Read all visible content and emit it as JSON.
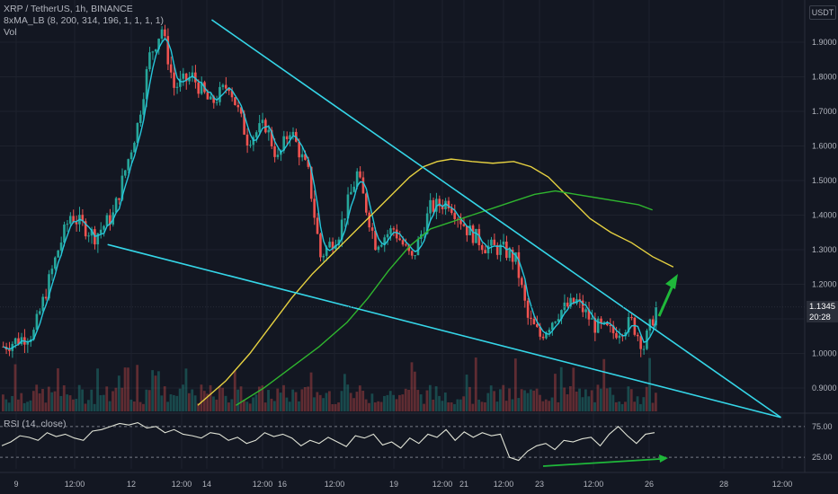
{
  "legend": {
    "symbol": "XRP / TetherUS, 1h, BINANCE",
    "indicator": "8xMA_LB (8, 200, 314, 196, 1, 1, 1, 1)",
    "volume": "Vol"
  },
  "rsi_legend": "RSI (14, close)",
  "currency": "USDT",
  "last_price": "1.1345",
  "countdown": "20:28",
  "colors": {
    "background": "#131722",
    "grid": "#1e222d",
    "up": "#26a69a",
    "down": "#ef5350",
    "ma_fast": "#26c6da",
    "ma_yellow": "#e6d141",
    "ma_green": "#2fb52f",
    "trendline": "#35d6e8",
    "arrow": "#1fb83a",
    "rsi_line": "#e0e3d6"
  },
  "chart_data": [
    {
      "type": "candlestick",
      "title": "XRP / TetherUS, 1h, BINANCE",
      "y_axis_labels": [
        "1.9000",
        "1.8000",
        "1.7000",
        "1.6000",
        "1.5000",
        "1.4000",
        "1.3000",
        "1.2000",
        "1.1000",
        "1.0000",
        "0.9000"
      ],
      "x_axis_labels": [
        "9",
        "12:00",
        "12",
        "12:00",
        "14",
        "12:00",
        "16",
        "12:00",
        "19",
        "12:00",
        "21",
        "12:00",
        "23",
        "12:00",
        "26",
        "28",
        "12:00"
      ],
      "ylim": [
        0.85,
        1.97
      ],
      "trend": [
        {
          "x": 0,
          "y": 1.02
        },
        {
          "x": 10,
          "y": 1.06
        },
        {
          "x": 18,
          "y": 1.3
        },
        {
          "x": 22,
          "y": 1.4
        },
        {
          "x": 30,
          "y": 1.34
        },
        {
          "x": 36,
          "y": 1.4
        },
        {
          "x": 44,
          "y": 1.66
        },
        {
          "x": 48,
          "y": 1.86
        },
        {
          "x": 52,
          "y": 1.94
        },
        {
          "x": 56,
          "y": 1.77
        },
        {
          "x": 62,
          "y": 1.8
        },
        {
          "x": 68,
          "y": 1.72
        },
        {
          "x": 74,
          "y": 1.78
        },
        {
          "x": 80,
          "y": 1.62
        },
        {
          "x": 86,
          "y": 1.66
        },
        {
          "x": 90,
          "y": 1.56
        },
        {
          "x": 94,
          "y": 1.65
        },
        {
          "x": 100,
          "y": 1.52
        },
        {
          "x": 104,
          "y": 1.28
        },
        {
          "x": 110,
          "y": 1.35
        },
        {
          "x": 116,
          "y": 1.52
        },
        {
          "x": 122,
          "y": 1.32
        },
        {
          "x": 128,
          "y": 1.36
        },
        {
          "x": 134,
          "y": 1.27
        },
        {
          "x": 140,
          "y": 1.42
        },
        {
          "x": 146,
          "y": 1.44
        },
        {
          "x": 152,
          "y": 1.36
        },
        {
          "x": 158,
          "y": 1.31
        },
        {
          "x": 164,
          "y": 1.3
        },
        {
          "x": 168,
          "y": 1.27
        },
        {
          "x": 172,
          "y": 1.1
        },
        {
          "x": 176,
          "y": 1.05
        },
        {
          "x": 182,
          "y": 1.12
        },
        {
          "x": 188,
          "y": 1.15
        },
        {
          "x": 194,
          "y": 1.08
        },
        {
          "x": 200,
          "y": 1.06
        },
        {
          "x": 206,
          "y": 1.09
        },
        {
          "x": 210,
          "y": 1.02
        },
        {
          "x": 214,
          "y": 1.13
        }
      ],
      "ma_yellow": [
        {
          "x": 0.57,
          "y": 0.85
        },
        {
          "x": 0.65,
          "y": 0.92
        },
        {
          "x": 0.72,
          "y": 1.0
        },
        {
          "x": 0.78,
          "y": 1.08
        },
        {
          "x": 0.84,
          "y": 1.16
        },
        {
          "x": 0.9,
          "y": 1.23
        },
        {
          "x": 0.96,
          "y": 1.29
        },
        {
          "x": 1.02,
          "y": 1.35
        },
        {
          "x": 1.08,
          "y": 1.41
        },
        {
          "x": 1.14,
          "y": 1.47
        },
        {
          "x": 1.18,
          "y": 1.51
        },
        {
          "x": 1.22,
          "y": 1.54
        },
        {
          "x": 1.26,
          "y": 1.555
        },
        {
          "x": 1.3,
          "y": 1.562
        },
        {
          "x": 1.36,
          "y": 1.555
        },
        {
          "x": 1.42,
          "y": 1.55
        },
        {
          "x": 1.48,
          "y": 1.555
        },
        {
          "x": 1.53,
          "y": 1.54
        },
        {
          "x": 1.58,
          "y": 1.51
        },
        {
          "x": 1.64,
          "y": 1.45
        },
        {
          "x": 1.7,
          "y": 1.39
        },
        {
          "x": 1.76,
          "y": 1.35
        },
        {
          "x": 1.82,
          "y": 1.32
        },
        {
          "x": 1.88,
          "y": 1.28
        },
        {
          "x": 1.94,
          "y": 1.25
        }
      ],
      "ma_green": [
        {
          "x": 0.68,
          "y": 0.85
        },
        {
          "x": 0.76,
          "y": 0.9
        },
        {
          "x": 0.84,
          "y": 0.96
        },
        {
          "x": 0.92,
          "y": 1.02
        },
        {
          "x": 1.0,
          "y": 1.09
        },
        {
          "x": 1.06,
          "y": 1.16
        },
        {
          "x": 1.12,
          "y": 1.24
        },
        {
          "x": 1.18,
          "y": 1.31
        },
        {
          "x": 1.24,
          "y": 1.36
        },
        {
          "x": 1.3,
          "y": 1.38
        },
        {
          "x": 1.36,
          "y": 1.4
        },
        {
          "x": 1.42,
          "y": 1.42
        },
        {
          "x": 1.48,
          "y": 1.44
        },
        {
          "x": 1.54,
          "y": 1.46
        },
        {
          "x": 1.6,
          "y": 1.47
        },
        {
          "x": 1.66,
          "y": 1.46
        },
        {
          "x": 1.72,
          "y": 1.45
        },
        {
          "x": 1.78,
          "y": 1.44
        },
        {
          "x": 1.84,
          "y": 1.43
        },
        {
          "x": 1.88,
          "y": 1.415
        }
      ],
      "trendlines": [
        {
          "from": {
            "x": 0.61,
            "y": 1.965
          },
          "to": {
            "x": 2.25,
            "y": 0.815
          }
        },
        {
          "from": {
            "x": 0.31,
            "y": 1.315
          },
          "to": {
            "x": 2.25,
            "y": 0.815
          }
        }
      ],
      "last_price": 1.1345
    },
    {
      "type": "line",
      "title": "RSI (14, close)",
      "y_axis_labels": [
        "75.00",
        "25.00"
      ],
      "ylim": [
        15,
        85
      ],
      "reference_lines": [
        70,
        30
      ],
      "values": [
        45,
        50,
        58,
        56,
        52,
        62,
        57,
        60,
        55,
        52,
        64,
        66,
        70,
        74,
        72,
        75,
        68,
        70,
        62,
        66,
        60,
        58,
        55,
        62,
        60,
        52,
        56,
        48,
        52,
        62,
        57,
        60,
        55,
        45,
        52,
        48,
        56,
        50,
        44,
        58,
        55,
        60,
        46,
        50,
        42,
        55,
        48,
        60,
        56,
        66,
        52,
        63,
        56,
        62,
        58,
        60,
        30,
        26,
        38,
        45,
        48,
        40,
        52,
        50,
        54,
        56,
        45,
        60,
        70,
        58,
        48,
        60,
        62
      ]
    }
  ]
}
